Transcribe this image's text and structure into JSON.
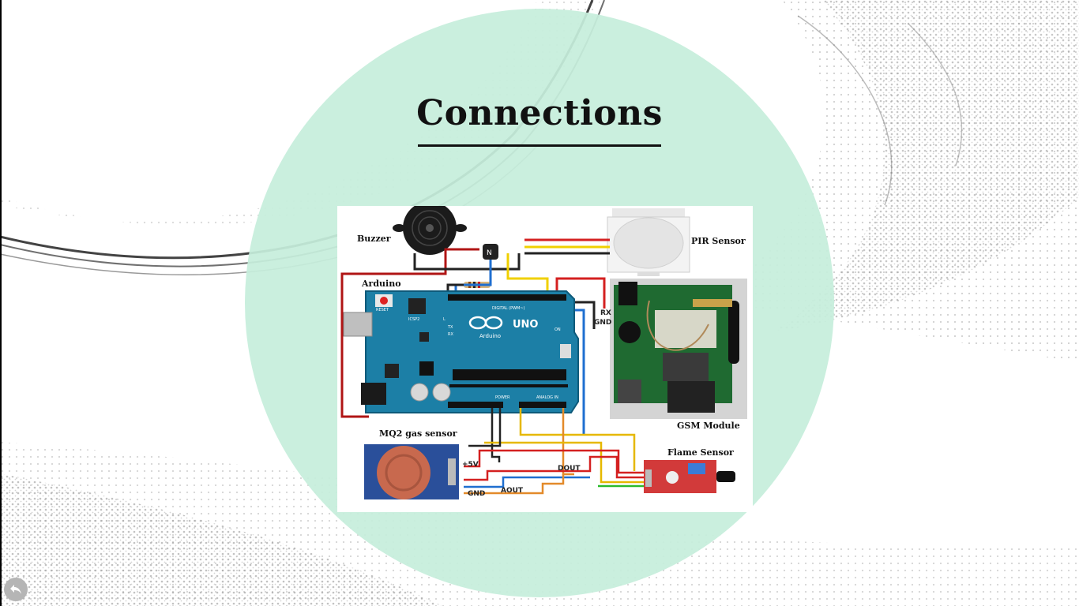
{
  "slide": {
    "title": "Connections",
    "accent_color": "#c6eedb"
  },
  "diagram": {
    "labels": {
      "buzzer": "Buzzer",
      "pir_sensor": "PIR Sensor",
      "arduino": "Arduino",
      "gsm_module": "GSM Module",
      "mq2_gas_sensor": "MQ2 gas sensor",
      "flame_sensor": "Flame Sensor"
    },
    "pin_labels": {
      "five_v": "+5V",
      "gnd": "GND",
      "dout": "DOUT",
      "aout": "AOUT",
      "rx": "RX",
      "gnd_short": "GND"
    },
    "board": {
      "brand": "Arduino",
      "model": "UNO",
      "reset": "RESET",
      "icsp": "ICSP2",
      "tx": "TX",
      "rx": "RX",
      "on": "ON",
      "l": "L",
      "digital": "DIGITAL (PWM~)",
      "power": "POWER",
      "analog": "ANALOG IN"
    }
  },
  "nav": {
    "back_icon": "back-arrow-icon"
  }
}
